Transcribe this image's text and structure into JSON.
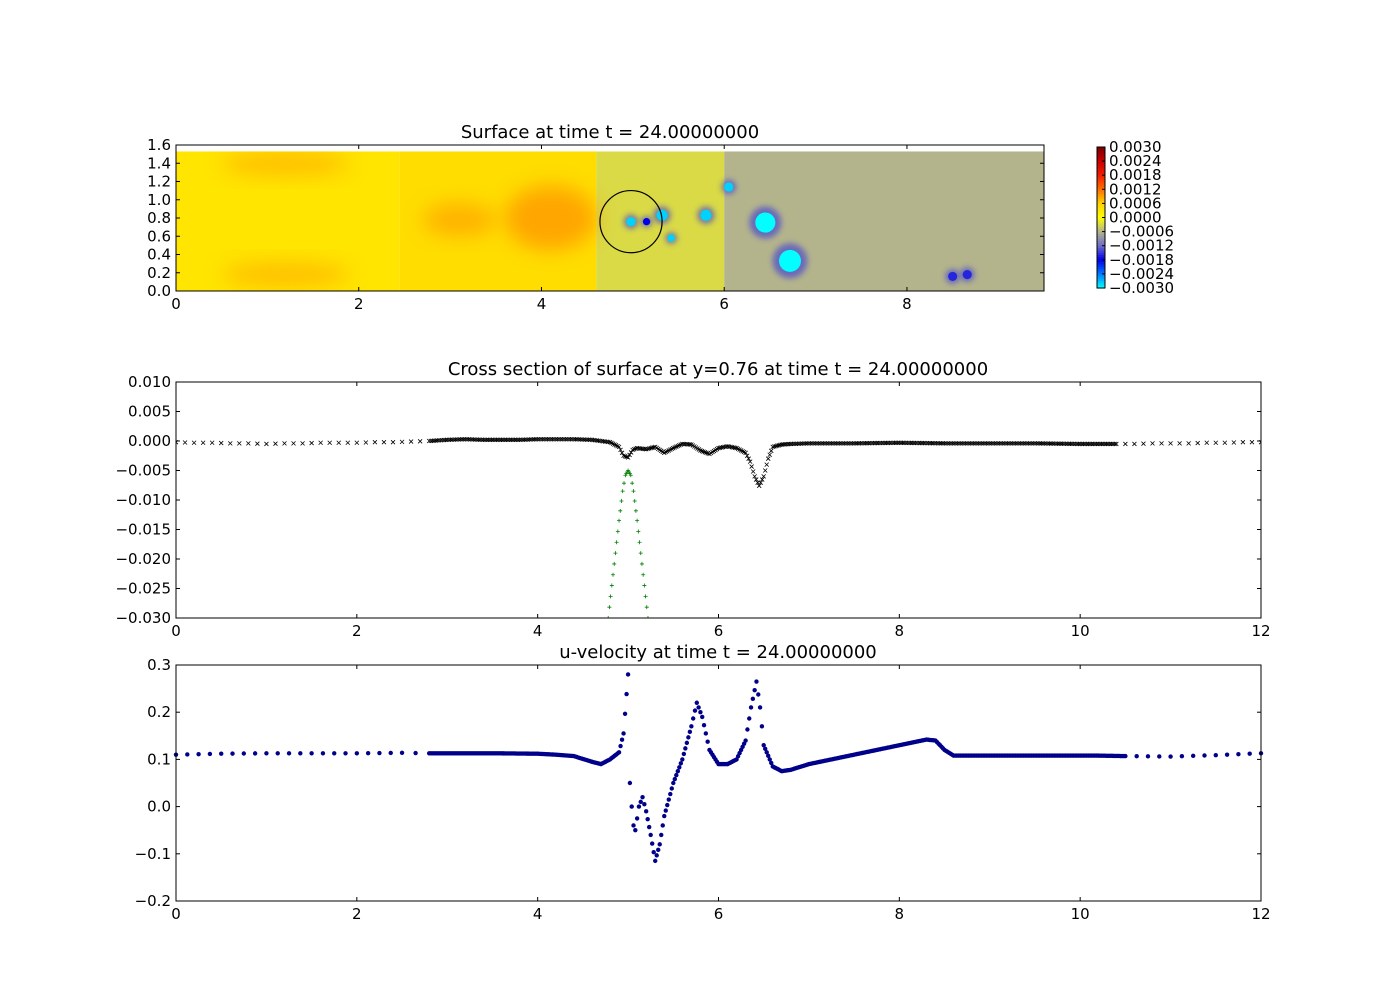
{
  "chart_data": [
    {
      "type": "heatmap",
      "title": "Surface at time t =    24.00000000",
      "xlabel": "",
      "ylabel": "",
      "xlim": [
        0,
        9.5
      ],
      "ylim": [
        0,
        1.6
      ],
      "xticks": [
        0,
        2,
        4,
        6,
        8
      ],
      "xtick_labels": [
        "0",
        "2",
        "4",
        "6",
        "8"
      ],
      "yticks": [
        0,
        0.2,
        0.4,
        0.6,
        0.8,
        1.0,
        1.2,
        1.4,
        1.6
      ],
      "ytick_labels": [
        "0.0",
        "0.2",
        "0.4",
        "0.6",
        "0.8",
        "1.0",
        "1.2",
        "1.4",
        "1.6"
      ],
      "domain_y_max": 1.53,
      "colorbar": {
        "range": [
          -0.003,
          0.003
        ],
        "ticks": [
          0.003,
          0.0024,
          0.0018,
          0.0012,
          0.0006,
          0.0,
          -0.0006,
          -0.0012,
          -0.0018,
          -0.0024,
          -0.003
        ],
        "tick_labels": [
          "0.0030",
          "0.0024",
          "0.0018",
          "0.0012",
          "0.0006",
          "0.0000",
          "−0.0006",
          "−0.0012",
          "−0.0018",
          "−0.0024",
          "−0.0030"
        ]
      },
      "background_bands": [
        {
          "x0": 0.0,
          "x1": 2.45,
          "value": 0.00035
        },
        {
          "x0": 2.45,
          "x1": 4.6,
          "value": 0.00045
        },
        {
          "x0": 4.6,
          "x1": 6.0,
          "value": -0.0003
        },
        {
          "x0": 6.0,
          "x1": 9.5,
          "value": -0.0006
        }
      ],
      "warm_patches": [
        {
          "x": 1.2,
          "y": 1.4,
          "rx": 0.7,
          "ry": 0.14,
          "value": 0.0008
        },
        {
          "x": 1.2,
          "y": 0.18,
          "rx": 0.7,
          "ry": 0.14,
          "value": 0.0008
        },
        {
          "x": 3.1,
          "y": 0.78,
          "rx": 0.4,
          "ry": 0.18,
          "value": 0.0009
        },
        {
          "x": 4.1,
          "y": 0.8,
          "rx": 0.5,
          "ry": 0.35,
          "value": 0.001
        }
      ],
      "vortices": [
        {
          "x": 4.98,
          "y": 0.76,
          "r": 0.05,
          "value": -0.0028
        },
        {
          "x": 5.15,
          "y": 0.76,
          "r": 0.04,
          "value": -0.0018
        },
        {
          "x": 5.32,
          "y": 0.83,
          "r": 0.06,
          "value": -0.0028
        },
        {
          "x": 5.42,
          "y": 0.58,
          "r": 0.04,
          "value": -0.0028
        },
        {
          "x": 5.8,
          "y": 0.83,
          "r": 0.06,
          "value": -0.0028
        },
        {
          "x": 6.05,
          "y": 1.14,
          "r": 0.05,
          "value": -0.0028
        },
        {
          "x": 6.45,
          "y": 0.75,
          "r": 0.11,
          "value": -0.003
        },
        {
          "x": 6.72,
          "y": 0.33,
          "r": 0.12,
          "value": -0.003
        },
        {
          "x": 8.5,
          "y": 0.16,
          "r": 0.05,
          "value": -0.0016
        },
        {
          "x": 8.66,
          "y": 0.18,
          "r": 0.05,
          "value": -0.0016
        }
      ],
      "circle": {
        "cx": 4.98,
        "cy": 0.76,
        "r": 0.34
      }
    },
    {
      "type": "scatter",
      "title": "Cross section of surface at y=0.76 at time t =    24.00000000",
      "xlabel": "",
      "ylabel": "",
      "xlim": [
        0,
        12
      ],
      "ylim": [
        -0.03,
        0.01
      ],
      "xticks": [
        0,
        2,
        4,
        6,
        8,
        10,
        12
      ],
      "xtick_labels": [
        "0",
        "2",
        "4",
        "6",
        "8",
        "10",
        "12"
      ],
      "yticks": [
        0.01,
        0.005,
        0.0,
        -0.005,
        -0.01,
        -0.015,
        -0.02,
        -0.025,
        -0.03
      ],
      "ytick_labels": [
        "0.010",
        "0.005",
        "0.000",
        "−0.005",
        "−0.010",
        "−0.015",
        "−0.020",
        "−0.025",
        "−0.030"
      ],
      "series": [
        {
          "marker": "x",
          "color": "#000000",
          "x": [
            0.0,
            0.2,
            0.4,
            0.6,
            0.8,
            1.0,
            1.2,
            1.4,
            1.6,
            1.8,
            2.0,
            2.2,
            2.4,
            2.6,
            2.8,
            3.0,
            3.2,
            3.4,
            3.6,
            3.8,
            4.0,
            4.2,
            4.4,
            4.6,
            4.8,
            4.9,
            4.95,
            5.0,
            5.05,
            5.1,
            5.2,
            5.3,
            5.4,
            5.5,
            5.6,
            5.7,
            5.8,
            5.9,
            6.0,
            6.1,
            6.2,
            6.3,
            6.35,
            6.4,
            6.45,
            6.5,
            6.55,
            6.6,
            6.7,
            6.8,
            7.0,
            7.5,
            8.0,
            8.5,
            9.0,
            9.5,
            10.0,
            10.2,
            10.4,
            10.6,
            10.8,
            11.0,
            11.2,
            11.4,
            11.6,
            11.8,
            12.0
          ],
          "y": [
            -0.0002,
            -0.0003,
            -0.0003,
            -0.0004,
            -0.0004,
            -0.0005,
            -0.0004,
            -0.0004,
            -0.0003,
            -0.0003,
            -0.0003,
            -0.0002,
            -0.0002,
            -0.0001,
            0.0,
            0.0002,
            0.0003,
            0.0002,
            0.0002,
            0.0002,
            0.0003,
            0.0003,
            0.0003,
            0.0002,
            -0.0002,
            -0.001,
            -0.0025,
            -0.0028,
            -0.0015,
            -0.0012,
            -0.0014,
            -0.001,
            -0.002,
            -0.0012,
            -0.0005,
            -0.0006,
            -0.0016,
            -0.0022,
            -0.0012,
            -0.0009,
            -0.0012,
            -0.002,
            -0.0035,
            -0.006,
            -0.0076,
            -0.006,
            -0.003,
            -0.001,
            -0.0006,
            -0.0005,
            -0.0004,
            -0.0004,
            -0.0003,
            -0.0004,
            -0.0004,
            -0.0004,
            -0.0005,
            -0.0005,
            -0.0005,
            -0.0005,
            -0.0004,
            -0.0004,
            -0.0004,
            -0.0003,
            -0.0003,
            -0.0002,
            -0.0002
          ]
        },
        {
          "marker": "+",
          "color": "#008000",
          "x": [
            4.78,
            4.82,
            4.86,
            4.9,
            4.94,
            4.97,
            5.0,
            5.03,
            5.06,
            5.1,
            5.14,
            5.18,
            5.22
          ],
          "y": [
            -0.03,
            -0.0245,
            -0.019,
            -0.0135,
            -0.0085,
            -0.0058,
            -0.005,
            -0.0058,
            -0.0085,
            -0.0135,
            -0.019,
            -0.0245,
            -0.03
          ]
        }
      ]
    },
    {
      "type": "scatter",
      "title": "u-velocity at time t =    24.00000000",
      "xlabel": "",
      "ylabel": "",
      "xlim": [
        0,
        12
      ],
      "ylim": [
        -0.2,
        0.3
      ],
      "xticks": [
        0,
        2,
        4,
        6,
        8,
        10,
        12
      ],
      "xtick_labels": [
        "0",
        "2",
        "4",
        "6",
        "8",
        "10",
        "12"
      ],
      "yticks": [
        0.3,
        0.2,
        0.1,
        0.0,
        -0.1,
        -0.2
      ],
      "ytick_labels": [
        "0.3",
        "0.2",
        "0.1",
        "0.0",
        "−0.1",
        "−0.2"
      ],
      "series": [
        {
          "marker": "o",
          "color": "#00008b",
          "x": [
            0.0,
            0.5,
            1.0,
            1.5,
            2.0,
            2.5,
            2.8,
            3.0,
            3.5,
            4.0,
            4.2,
            4.4,
            4.6,
            4.7,
            4.8,
            4.9,
            4.95,
            5.0,
            5.02,
            5.04,
            5.06,
            5.08,
            5.12,
            5.16,
            5.2,
            5.25,
            5.3,
            5.35,
            5.4,
            5.5,
            5.6,
            5.7,
            5.76,
            5.82,
            5.9,
            6.0,
            6.1,
            6.2,
            6.3,
            6.36,
            6.42,
            6.46,
            6.5,
            6.6,
            6.7,
            6.8,
            7.0,
            7.5,
            8.0,
            8.3,
            8.4,
            8.5,
            8.6,
            9.0,
            9.5,
            10.0,
            10.2,
            10.5,
            11.0,
            11.5,
            12.0
          ],
          "y": [
            0.11,
            0.112,
            0.113,
            0.113,
            0.113,
            0.114,
            0.113,
            0.113,
            0.113,
            0.112,
            0.11,
            0.107,
            0.095,
            0.09,
            0.1,
            0.115,
            0.155,
            0.28,
            0.05,
            0.0,
            -0.04,
            -0.05,
            0.0,
            0.02,
            -0.01,
            -0.06,
            -0.115,
            -0.08,
            -0.02,
            0.05,
            0.1,
            0.17,
            0.22,
            0.19,
            0.12,
            0.09,
            0.09,
            0.1,
            0.14,
            0.21,
            0.265,
            0.21,
            0.13,
            0.085,
            0.075,
            0.078,
            0.09,
            0.11,
            0.13,
            0.142,
            0.14,
            0.12,
            0.108,
            0.108,
            0.108,
            0.108,
            0.108,
            0.107,
            0.106,
            0.109,
            0.113
          ]
        }
      ]
    }
  ]
}
